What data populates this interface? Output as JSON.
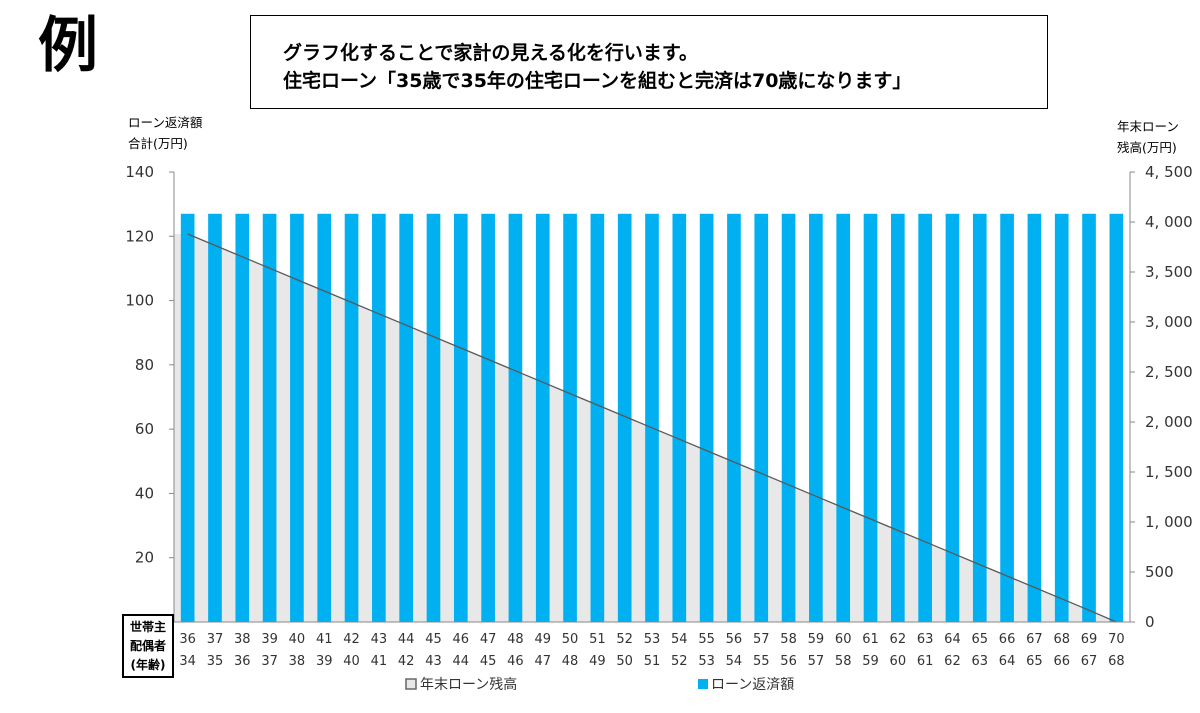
{
  "big_mark": "例",
  "title": {
    "line1": "グラフ化することで家計の見える化を行います。",
    "line2": "住宅ローン「35歳で35年の住宅ローンを組むと完済は70歳になります」"
  },
  "axis_titles": {
    "left_line1": "ローン返済額",
    "left_line2": "合計(万円)",
    "right_line1": "年末ローン",
    "right_line2": "残高(万円)"
  },
  "age_label": {
    "line1": "世帯主",
    "line2": "配偶者",
    "line3": "(年齢)"
  },
  "colors": {
    "bar": "#00b0f0",
    "area_fill": "#e8e8e8",
    "line": "#595959"
  },
  "chart_data": {
    "type": "bar",
    "categories_top": [
      "36",
      "37",
      "38",
      "39",
      "40",
      "41",
      "42",
      "43",
      "44",
      "45",
      "46",
      "47",
      "48",
      "49",
      "50",
      "51",
      "52",
      "53",
      "54",
      "55",
      "56",
      "57",
      "58",
      "59",
      "60",
      "61",
      "62",
      "63",
      "64",
      "65",
      "66",
      "67",
      "68",
      "69",
      "70"
    ],
    "categories_bottom": [
      "34",
      "35",
      "36",
      "37",
      "38",
      "39",
      "40",
      "41",
      "42",
      "43",
      "44",
      "45",
      "46",
      "47",
      "48",
      "49",
      "50",
      "51",
      "52",
      "53",
      "54",
      "55",
      "56",
      "57",
      "58",
      "59",
      "60",
      "61",
      "62",
      "63",
      "64",
      "65",
      "66",
      "67",
      "68"
    ],
    "series": [
      {
        "name": "ローン返済額",
        "type": "bar",
        "axis": "left",
        "values": [
          127,
          127,
          127,
          127,
          127,
          127,
          127,
          127,
          127,
          127,
          127,
          127,
          127,
          127,
          127,
          127,
          127,
          127,
          127,
          127,
          127,
          127,
          127,
          127,
          127,
          127,
          127,
          127,
          127,
          127,
          127,
          127,
          127,
          127,
          127
        ]
      },
      {
        "name": "年末ローン残高",
        "type": "area",
        "axis": "right",
        "values": [
          3880,
          3766,
          3652,
          3538,
          3424,
          3310,
          3196,
          3082,
          2968,
          2854,
          2740,
          2626,
          2512,
          2398,
          2284,
          2170,
          2056,
          1942,
          1828,
          1714,
          1600,
          1486,
          1372,
          1258,
          1144,
          1030,
          916,
          802,
          688,
          574,
          460,
          346,
          232,
          118,
          0
        ]
      }
    ],
    "ylim_left": [
      0,
      140
    ],
    "yticks_left": [
      "20",
      "40",
      "60",
      "80",
      "100",
      "120",
      "140"
    ],
    "ylim_right": [
      0,
      4500
    ],
    "yticks_right": [
      "0",
      "500",
      "1, 000",
      "1, 500",
      "2, 000",
      "2, 500",
      "3, 000",
      "3, 500",
      "4, 000",
      "4, 500"
    ],
    "legend": [
      "年末ローン残高",
      "ローン返済額"
    ],
    "legend_position": "bottom",
    "grid": false
  }
}
